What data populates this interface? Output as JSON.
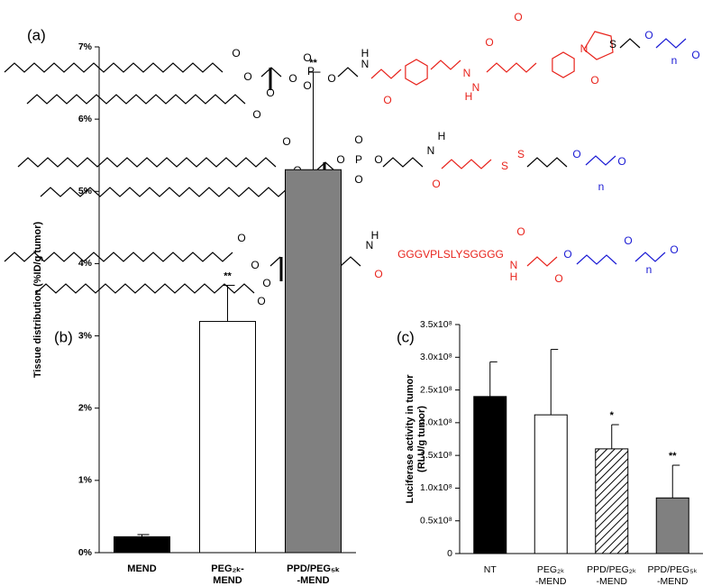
{
  "figure": {
    "panel_a": "(a)",
    "structures": [
      {
        "labels": [
          "O",
          "O",
          "O",
          "O",
          "O",
          "P",
          "O",
          "O",
          "O",
          "N",
          "H",
          "O",
          "N",
          "N",
          "H",
          "O",
          "N",
          "O",
          "O",
          "S",
          "O",
          "n",
          "O"
        ]
      },
      {
        "labels": [
          "O",
          "O",
          "O",
          "O",
          "O",
          "P",
          "O",
          "O",
          "O",
          "N",
          "H",
          "O",
          "S",
          "S",
          "O",
          "n",
          "O"
        ]
      },
      {
        "labels": [
          "O",
          "O",
          "O",
          "O",
          "O",
          "P",
          "O",
          "O",
          "O",
          "N",
          "H",
          "O",
          "GGGVPLSLYSGGGG",
          "N",
          "H",
          "O",
          "O",
          "O",
          "O",
          "n",
          "O"
        ]
      }
    ]
  },
  "chart_data": [
    {
      "type": "bar",
      "panel": "(b)",
      "ylabel": "Tissue distribution (%ID/g tumor)",
      "categories": [
        "MEND",
        "PEG₂ₖ-\nMEND",
        "PPD/PEG₅ₖ\n-MEND"
      ],
      "values": [
        0.22,
        3.2,
        5.3
      ],
      "errors": [
        0.03,
        0.5,
        1.35
      ],
      "colors": [
        "#000000",
        "#ffffff",
        "#808080"
      ],
      "hatched": [
        false,
        false,
        false
      ],
      "significance": [
        null,
        "**",
        "**"
      ],
      "ylim": [
        0,
        7
      ],
      "yticks": [
        {
          "value": 0,
          "label": "0%"
        },
        {
          "value": 1,
          "label": "1%"
        },
        {
          "value": 2,
          "label": "2%"
        },
        {
          "value": 3,
          "label": "3%"
        },
        {
          "value": 4,
          "label": "4%"
        },
        {
          "value": 5,
          "label": "5%"
        },
        {
          "value": 6,
          "label": "6%"
        },
        {
          "value": 7,
          "label": "7%"
        }
      ]
    },
    {
      "type": "bar",
      "panel": "(c)",
      "ylabel": "Luciferase activity in tumor\n(RLU/g tumor)",
      "categories": [
        "NT",
        "PEG₂ₖ\n-MEND",
        "PPD/PEG₂ₖ\n-MEND",
        "PPD/PEG₅ₖ\n-MEND"
      ],
      "values": [
        240000000,
        212000000,
        160000000,
        85000000
      ],
      "errors": [
        53000000,
        100000000,
        37000000,
        50000000
      ],
      "colors": [
        "#000000",
        "#ffffff",
        "#ffffff",
        "#808080"
      ],
      "hatched": [
        false,
        false,
        true,
        false
      ],
      "significance": [
        null,
        null,
        "*",
        "**"
      ],
      "ylim": [
        0,
        350000000
      ],
      "yticks": [
        0,
        {
          "value": 50000000,
          "label": "0.5x10⁸"
        },
        {
          "value": 100000000,
          "label": "1.0x10⁸"
        },
        {
          "value": 150000000,
          "label": "1.5x10⁸"
        },
        {
          "value": 200000000,
          "label": "2.0x10⁸"
        },
        {
          "value": 250000000,
          "label": "2.5x10⁸"
        },
        {
          "value": 300000000,
          "label": "3.0x10⁸"
        },
        {
          "value": 350000000,
          "label": "3.5x10⁸"
        }
      ]
    }
  ]
}
